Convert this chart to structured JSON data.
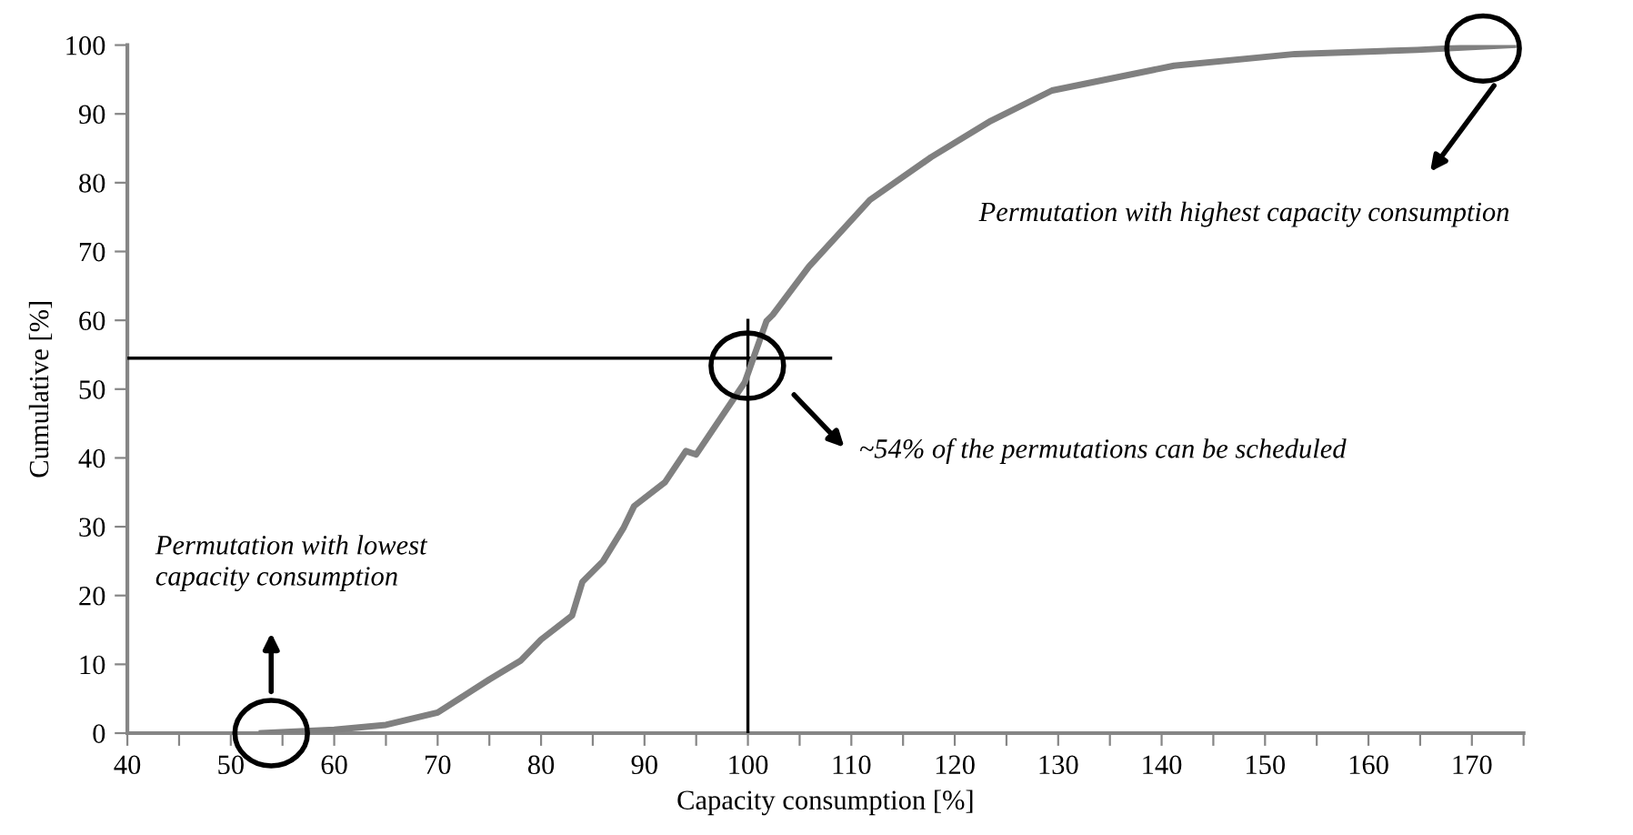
{
  "chart_data": {
    "type": "line",
    "xlabel": "Capacity consumption [%]",
    "ylabel": "Cumulative [%]",
    "xlim": [
      40,
      175
    ],
    "ylim": [
      0,
      100
    ],
    "xticks": [
      40,
      {
        "value": 45,
        "label": null
      },
      50,
      {
        "value": 55,
        "label": null
      },
      60,
      {
        "value": 65,
        "label": null
      },
      70,
      {
        "value": 75,
        "label": null
      },
      80,
      {
        "value": 85,
        "label": null
      },
      90,
      {
        "value": 95,
        "label": null
      },
      100,
      {
        "value": 105,
        "label": null
      },
      110,
      {
        "value": 115,
        "label": null
      },
      120,
      {
        "value": 125,
        "label": null
      },
      130,
      {
        "value": 135,
        "label": null
      },
      140,
      {
        "value": 145,
        "label": null
      },
      150,
      {
        "value": 155,
        "label": null
      },
      160,
      {
        "value": 165,
        "label": null
      },
      170,
      {
        "value": 175,
        "label": null
      }
    ],
    "yticks": [
      0,
      10,
      20,
      30,
      40,
      50,
      60,
      70,
      80,
      90,
      100
    ],
    "grid": false,
    "marker": "none",
    "line_style": "solid",
    "series": [
      {
        "color": "#808080",
        "x": [
          53,
          60,
          65,
          70,
          75,
          78,
          80,
          83,
          84,
          86,
          88,
          89,
          92,
          94,
          95,
          99.7,
          101.8,
          102.4,
          105.9,
          111.8,
          117.7,
          123.5,
          129.4,
          141.2,
          152.9,
          164.7,
          174
        ],
        "values": [
          0,
          0.5,
          1.2,
          3,
          7.8,
          10.5,
          13.6,
          17.1,
          22,
          25,
          29.9,
          33,
          36.5,
          41,
          40.5,
          51,
          59.9,
          60.8,
          67.8,
          77.5,
          83.7,
          89,
          93.4,
          97,
          98.7,
          99.3,
          100
        ]
      },
      {
        "color": "#000000",
        "x": [
          40,
          108
        ],
        "values": [
          54.5,
          54.5
        ]
      },
      {
        "color": "#000000",
        "x": [
          100,
          100
        ],
        "values": [
          0,
          60
        ]
      }
    ],
    "annotations": [
      "Permutation with lowest\ncapacity consumption",
      "~54% of the permutations can be scheduled",
      "Permutation with highest capacity consumption"
    ]
  }
}
